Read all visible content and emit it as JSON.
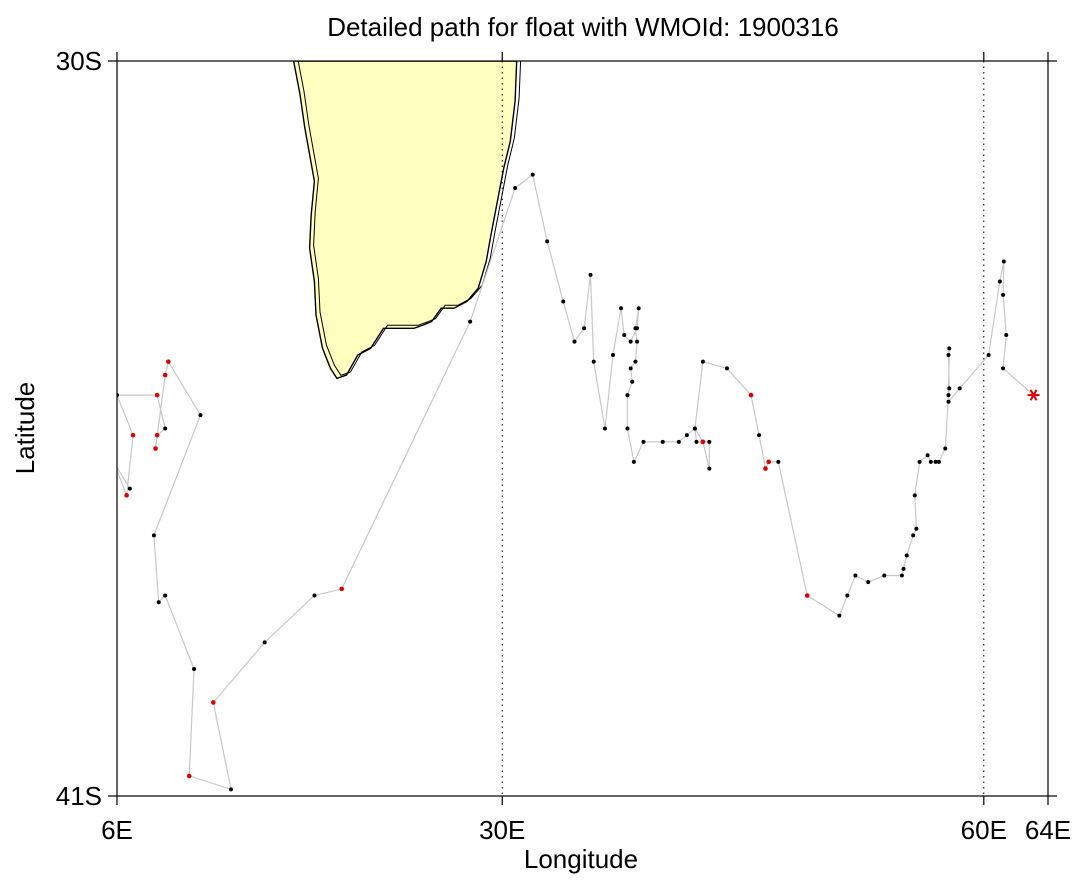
{
  "chart_data": {
    "type": "scatter",
    "title": "Detailed path for float with WMOId: 1900316",
    "xlabel": "Longitude",
    "ylabel": "Latitude",
    "xlim": [
      6,
      64
    ],
    "ylim": [
      -41,
      -30
    ],
    "x_ticks": [
      {
        "value": 6,
        "label": "6E"
      },
      {
        "value": 30,
        "label": "30E"
      },
      {
        "value": 60,
        "label": "60E"
      },
      {
        "value": 64,
        "label": "64E"
      }
    ],
    "y_ticks": [
      {
        "value": -30,
        "label": "30S"
      },
      {
        "value": -41,
        "label": "41S"
      }
    ],
    "gridlines_x": [
      30,
      60
    ],
    "colors": {
      "land_fill": "#ffffc0",
      "track_line": "#c8c8c8",
      "profile_point": "#000000",
      "highlight_point": "#dd0000",
      "last_position": "#dd0000"
    },
    "land_outline": [
      [
        17.0,
        -30.0
      ],
      [
        30.9,
        -30.0
      ],
      [
        30.8,
        -30.6
      ],
      [
        30.5,
        -31.2
      ],
      [
        30.1,
        -31.6
      ],
      [
        29.7,
        -32.1
      ],
      [
        29.3,
        -32.6
      ],
      [
        29.0,
        -33.0
      ],
      [
        28.5,
        -33.4
      ],
      [
        27.8,
        -33.6
      ],
      [
        27.0,
        -33.7
      ],
      [
        26.2,
        -33.7
      ],
      [
        25.6,
        -33.9
      ],
      [
        25.1,
        -33.95
      ],
      [
        24.5,
        -34.0
      ],
      [
        23.6,
        -34.0
      ],
      [
        22.6,
        -34.0
      ],
      [
        21.8,
        -34.3
      ],
      [
        21.0,
        -34.4
      ],
      [
        20.3,
        -34.7
      ],
      [
        19.7,
        -34.75
      ],
      [
        19.3,
        -34.6
      ],
      [
        18.8,
        -34.3
      ],
      [
        18.4,
        -33.8
      ],
      [
        18.3,
        -33.3
      ],
      [
        18.0,
        -32.8
      ],
      [
        18.1,
        -32.3
      ],
      [
        18.3,
        -31.8
      ],
      [
        17.7,
        -31.0
      ],
      [
        17.4,
        -30.5
      ],
      [
        17.0,
        -30.0
      ]
    ],
    "track": [
      [
        63.1,
        -35.0
      ],
      [
        61.2,
        -34.6
      ],
      [
        61.4,
        -34.1
      ],
      [
        61.2,
        -33.5
      ],
      [
        61.25,
        -33.0
      ],
      [
        61.0,
        -33.3
      ],
      [
        60.3,
        -34.4
      ],
      [
        58.5,
        -34.9
      ],
      [
        57.8,
        -35.1
      ],
      [
        57.85,
        -34.9
      ],
      [
        57.8,
        -34.4
      ],
      [
        57.85,
        -34.3
      ],
      [
        57.8,
        -35.0
      ],
      [
        57.6,
        -35.8
      ],
      [
        57.2,
        -36.0
      ],
      [
        57.0,
        -36.0
      ],
      [
        56.7,
        -36.0
      ],
      [
        56.5,
        -35.9
      ],
      [
        56.0,
        -36.0
      ],
      [
        55.7,
        -36.5
      ],
      [
        55.8,
        -37.0
      ],
      [
        55.6,
        -37.1
      ],
      [
        55.2,
        -37.4
      ],
      [
        55.0,
        -37.6
      ],
      [
        54.9,
        -37.7
      ],
      [
        53.8,
        -37.7
      ],
      [
        52.8,
        -37.8
      ],
      [
        52.0,
        -37.7
      ],
      [
        51.5,
        -38.0
      ],
      [
        51.0,
        -38.3
      ],
      [
        49.0,
        -38.0
      ],
      [
        47.2,
        -36.0
      ],
      [
        46.6,
        -36.0
      ],
      [
        46.4,
        -36.1
      ],
      [
        46.0,
        -35.6
      ],
      [
        45.5,
        -35.0
      ],
      [
        44.0,
        -34.6
      ],
      [
        42.5,
        -34.5
      ],
      [
        42.0,
        -35.5
      ],
      [
        42.1,
        -35.7
      ],
      [
        42.5,
        -35.7
      ],
      [
        42.9,
        -36.1
      ],
      [
        42.9,
        -35.7
      ],
      [
        42.5,
        -35.7
      ],
      [
        42.0,
        -35.5
      ],
      [
        41.5,
        -35.6
      ],
      [
        41.0,
        -35.7
      ],
      [
        40.0,
        -35.7
      ],
      [
        38.8,
        -35.7
      ],
      [
        38.2,
        -36.0
      ],
      [
        37.8,
        -35.5
      ],
      [
        37.8,
        -35.0
      ],
      [
        38.1,
        -34.8
      ],
      [
        38.0,
        -34.6
      ],
      [
        38.3,
        -34.5
      ],
      [
        38.4,
        -34.2
      ],
      [
        38.3,
        -34.0
      ],
      [
        38.5,
        -33.7
      ],
      [
        38.4,
        -34.0
      ],
      [
        38.0,
        -34.2
      ],
      [
        37.6,
        -34.1
      ],
      [
        37.4,
        -33.7
      ],
      [
        36.9,
        -34.4
      ],
      [
        36.4,
        -35.5
      ],
      [
        35.7,
        -34.5
      ],
      [
        35.5,
        -33.2
      ],
      [
        35.1,
        -34.0
      ],
      [
        34.5,
        -34.2
      ],
      [
        33.8,
        -33.6
      ],
      [
        32.8,
        -32.7
      ],
      [
        31.9,
        -31.7
      ],
      [
        30.8,
        -31.9
      ],
      [
        28.0,
        -33.9
      ],
      [
        20.0,
        -37.9
      ],
      [
        18.3,
        -38.0
      ],
      [
        15.2,
        -38.7
      ],
      [
        12.0,
        -39.6
      ],
      [
        13.1,
        -40.9
      ],
      [
        10.5,
        -40.7
      ],
      [
        10.8,
        -39.1
      ],
      [
        9.0,
        -38.0
      ],
      [
        8.6,
        -38.1
      ],
      [
        8.3,
        -37.1
      ],
      [
        11.2,
        -35.3
      ],
      [
        9.2,
        -34.5
      ],
      [
        9.0,
        -34.7
      ],
      [
        8.4,
        -35.8
      ],
      [
        8.5,
        -35.6
      ],
      [
        9.0,
        -35.5
      ],
      [
        8.5,
        -35.0
      ],
      [
        6.0,
        -35.0
      ],
      [
        7.0,
        -35.6
      ],
      [
        6.6,
        -36.5
      ],
      [
        5.8,
        -36.0
      ],
      [
        6.8,
        -36.4
      ]
    ],
    "highlight_points": [
      [
        45.5,
        -35.0
      ],
      [
        46.6,
        -36.0
      ],
      [
        46.4,
        -36.1
      ],
      [
        49.0,
        -38.0
      ],
      [
        42.5,
        -35.7
      ],
      [
        20.0,
        -37.9
      ],
      [
        12.0,
        -39.6
      ],
      [
        10.5,
        -40.7
      ],
      [
        9.0,
        -34.7
      ],
      [
        9.2,
        -34.5
      ],
      [
        8.4,
        -35.8
      ],
      [
        8.5,
        -35.6
      ],
      [
        8.5,
        -35.0
      ],
      [
        7.0,
        -35.6
      ],
      [
        6.6,
        -36.5
      ]
    ],
    "last_position": [
      63.1,
      -35.0
    ]
  }
}
